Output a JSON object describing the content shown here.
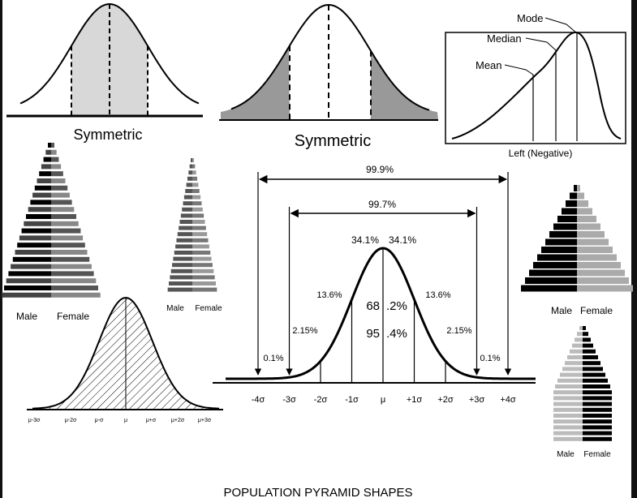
{
  "panels": {
    "symmetric_left": {
      "label": "Symmetric"
    },
    "symmetric_center": {
      "label": "Symmetric"
    },
    "skewed": {
      "mode": "Mode",
      "median": "Median",
      "mean": "Mean",
      "caption": "Left (Negative)"
    },
    "pyramids": [
      {
        "male": "Male",
        "female": "Female"
      },
      {
        "male": "Male",
        "female": "Female"
      },
      {
        "male": "Male",
        "female": "Female"
      },
      {
        "male": "Male",
        "female": "Female"
      }
    ],
    "normal": {
      "ranges": [
        "99.9%",
        "99.7%"
      ],
      "peak_labels": [
        "34.1%",
        "34.1%"
      ],
      "one_sigma_labels": [
        "13.6%",
        "13.6%"
      ],
      "two_sigma_labels": [
        "2.15%",
        "2.15%"
      ],
      "tail_labels": [
        "0.1%",
        "0.1%"
      ],
      "center_labels": [
        [
          "68",
          ".2%"
        ],
        [
          "95",
          ".4%"
        ]
      ],
      "axis": [
        "-4σ",
        "-3σ",
        "-2σ",
        "-1σ",
        "μ",
        "+1σ",
        "+2σ",
        "+3σ",
        "+4σ"
      ]
    },
    "hatched": {
      "axis": [
        "μ-3σ",
        "μ-2σ",
        "μ-σ",
        "μ",
        "μ+σ",
        "μ+2σ",
        "μ+3σ"
      ]
    }
  },
  "title": "POPULATION PYRAMID SHAPES"
}
